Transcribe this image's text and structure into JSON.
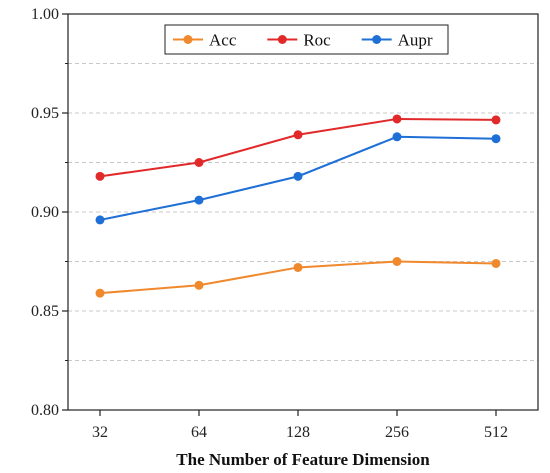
{
  "chart_data": {
    "type": "line",
    "title": "",
    "xlabel": "The Number of Feature Dimension",
    "ylabel": "",
    "categories": [
      "32",
      "64",
      "128",
      "256",
      "512"
    ],
    "ylim": [
      0.8,
      1.0
    ],
    "y_ticks": [
      "0.80",
      "0.85",
      "0.90",
      "0.95",
      "1.00"
    ],
    "grid": "horizontal dashed",
    "legend_placement": "top-center",
    "series": [
      {
        "name": "Acc",
        "color": "#f0882c",
        "values": [
          0.859,
          0.863,
          0.872,
          0.875,
          0.874
        ]
      },
      {
        "name": "Roc",
        "color": "#e2292a",
        "values": [
          0.918,
          0.925,
          0.939,
          0.947,
          0.9465
        ]
      },
      {
        "name": "Aupr",
        "color": "#1e6fd6",
        "values": [
          0.896,
          0.906,
          0.918,
          0.938,
          0.937
        ]
      }
    ]
  }
}
